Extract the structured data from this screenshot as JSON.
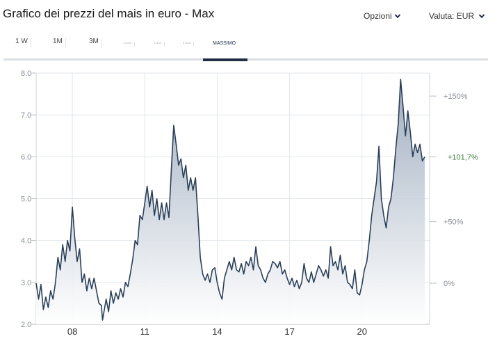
{
  "header": {
    "title": "Grafico dei prezzi del mais in euro - Max",
    "options_label": "Opzioni",
    "currency_label": "Valuta: EUR"
  },
  "tabs": [
    {
      "label": "1 W",
      "size": "normal"
    },
    {
      "label": "1M",
      "size": "normal"
    },
    {
      "label": "3M",
      "size": "normal"
    },
    {
      "label": "1 anno",
      "size": "tiny"
    },
    {
      "label": "3 anni",
      "size": "tiny"
    },
    {
      "label": "5 anni",
      "size": "tiny"
    },
    {
      "label": "MASSIMO",
      "size": "active"
    }
  ],
  "active_tab": "MASSIMO",
  "colors": {
    "line": "#2b3f58",
    "fill_top": "#9aa9bc",
    "fill_bottom": "#ffffff",
    "grid": "#e3e6ea",
    "active_tab": "#1f2d45",
    "pct_green": "#3a7d3a"
  },
  "chart_data": {
    "type": "area",
    "title": "",
    "xlabel": "",
    "ylabel": "",
    "ylim": [
      2.0,
      8.0
    ],
    "xlim": [
      2006.5,
      2022.8
    ],
    "yticks": [
      "8.0",
      "7.0",
      "6.0",
      "5.0",
      "4.0",
      "3.0",
      "2.0"
    ],
    "ytick_values": [
      8.0,
      7.0,
      6.0,
      5.0,
      4.0,
      3.0,
      2.0
    ],
    "xticks": [
      "08",
      "11",
      "14",
      "17",
      "20"
    ],
    "xtick_values": [
      2008,
      2011,
      2014,
      2017,
      2020
    ],
    "right_axis": [
      {
        "label": "+150%",
        "value": 7.45,
        "highlight": false
      },
      {
        "label": "+101,7%",
        "value": 6.0,
        "highlight": true
      },
      {
        "label": "+50%",
        "value": 4.45,
        "highlight": false
      },
      {
        "label": "0%",
        "value": 2.98,
        "highlight": false
      }
    ],
    "grid": true,
    "series": [
      {
        "points": [
          [
            2006.5,
            2.98
          ],
          [
            2006.6,
            2.6
          ],
          [
            2006.7,
            2.95
          ],
          [
            2006.8,
            2.35
          ],
          [
            2006.9,
            2.65
          ],
          [
            2007.0,
            2.4
          ],
          [
            2007.1,
            2.8
          ],
          [
            2007.2,
            2.6
          ],
          [
            2007.3,
            3.0
          ],
          [
            2007.4,
            3.6
          ],
          [
            2007.5,
            3.3
          ],
          [
            2007.6,
            3.9
          ],
          [
            2007.7,
            3.5
          ],
          [
            2007.8,
            4.0
          ],
          [
            2007.9,
            3.75
          ],
          [
            2008.0,
            4.8
          ],
          [
            2008.1,
            4.05
          ],
          [
            2008.2,
            3.5
          ],
          [
            2008.3,
            3.8
          ],
          [
            2008.4,
            3.0
          ],
          [
            2008.5,
            3.2
          ],
          [
            2008.6,
            2.8
          ],
          [
            2008.7,
            3.1
          ],
          [
            2008.8,
            2.85
          ],
          [
            2008.9,
            3.1
          ],
          [
            2009.0,
            2.8
          ],
          [
            2009.1,
            2.5
          ],
          [
            2009.2,
            2.45
          ],
          [
            2009.25,
            2.1
          ],
          [
            2009.4,
            2.6
          ],
          [
            2009.5,
            2.3
          ],
          [
            2009.6,
            2.8
          ],
          [
            2009.7,
            2.5
          ],
          [
            2009.8,
            2.75
          ],
          [
            2009.9,
            2.6
          ],
          [
            2010.0,
            2.85
          ],
          [
            2010.1,
            2.65
          ],
          [
            2010.2,
            3.0
          ],
          [
            2010.3,
            2.9
          ],
          [
            2010.4,
            3.2
          ],
          [
            2010.5,
            3.55
          ],
          [
            2010.6,
            4.0
          ],
          [
            2010.7,
            3.9
          ],
          [
            2010.8,
            4.6
          ],
          [
            2010.9,
            4.5
          ],
          [
            2011.0,
            4.9
          ],
          [
            2011.1,
            5.3
          ],
          [
            2011.2,
            4.8
          ],
          [
            2011.3,
            5.2
          ],
          [
            2011.4,
            4.6
          ],
          [
            2011.5,
            5.0
          ],
          [
            2011.6,
            4.5
          ],
          [
            2011.7,
            4.9
          ],
          [
            2011.8,
            4.5
          ],
          [
            2011.9,
            4.9
          ],
          [
            2012.0,
            4.55
          ],
          [
            2012.1,
            5.7
          ],
          [
            2012.2,
            6.75
          ],
          [
            2012.3,
            6.3
          ],
          [
            2012.4,
            5.8
          ],
          [
            2012.5,
            5.95
          ],
          [
            2012.6,
            5.5
          ],
          [
            2012.7,
            5.8
          ],
          [
            2012.8,
            5.2
          ],
          [
            2012.9,
            5.5
          ],
          [
            2013.0,
            5.2
          ],
          [
            2013.1,
            5.5
          ],
          [
            2013.2,
            4.6
          ],
          [
            2013.3,
            3.6
          ],
          [
            2013.4,
            3.2
          ],
          [
            2013.5,
            3.05
          ],
          [
            2013.6,
            3.2
          ],
          [
            2013.7,
            3.0
          ],
          [
            2013.8,
            3.3
          ],
          [
            2013.9,
            3.35
          ],
          [
            2014.0,
            3.0
          ],
          [
            2014.1,
            2.75
          ],
          [
            2014.2,
            2.6
          ],
          [
            2014.3,
            3.1
          ],
          [
            2014.4,
            3.3
          ],
          [
            2014.5,
            3.5
          ],
          [
            2014.6,
            3.3
          ],
          [
            2014.7,
            3.6
          ],
          [
            2014.8,
            3.3
          ],
          [
            2014.9,
            3.25
          ],
          [
            2015.0,
            3.45
          ],
          [
            2015.1,
            3.2
          ],
          [
            2015.2,
            3.5
          ],
          [
            2015.3,
            3.4
          ],
          [
            2015.4,
            3.6
          ],
          [
            2015.5,
            3.3
          ],
          [
            2015.6,
            3.85
          ],
          [
            2015.7,
            3.4
          ],
          [
            2015.8,
            3.3
          ],
          [
            2015.9,
            3.1
          ],
          [
            2016.0,
            3.0
          ],
          [
            2016.1,
            3.2
          ],
          [
            2016.2,
            3.3
          ],
          [
            2016.3,
            3.5
          ],
          [
            2016.4,
            3.45
          ],
          [
            2016.5,
            3.35
          ],
          [
            2016.6,
            3.5
          ],
          [
            2016.7,
            3.2
          ],
          [
            2016.8,
            3.3
          ],
          [
            2016.9,
            3.1
          ],
          [
            2017.0,
            2.95
          ],
          [
            2017.1,
            3.1
          ],
          [
            2017.2,
            2.9
          ],
          [
            2017.3,
            3.05
          ],
          [
            2017.4,
            2.85
          ],
          [
            2017.5,
            3.0
          ],
          [
            2017.6,
            3.45
          ],
          [
            2017.7,
            3.1
          ],
          [
            2017.8,
            3.0
          ],
          [
            2017.9,
            3.25
          ],
          [
            2018.0,
            3.0
          ],
          [
            2018.1,
            3.2
          ],
          [
            2018.2,
            3.4
          ],
          [
            2018.3,
            3.3
          ],
          [
            2018.4,
            3.15
          ],
          [
            2018.5,
            3.3
          ],
          [
            2018.6,
            3.1
          ],
          [
            2018.7,
            3.85
          ],
          [
            2018.8,
            3.4
          ],
          [
            2018.9,
            3.5
          ],
          [
            2019.0,
            3.3
          ],
          [
            2019.1,
            3.65
          ],
          [
            2019.2,
            3.2
          ],
          [
            2019.3,
            3.4
          ],
          [
            2019.4,
            3.0
          ],
          [
            2019.5,
            2.95
          ],
          [
            2019.6,
            2.85
          ],
          [
            2019.7,
            3.3
          ],
          [
            2019.8,
            2.75
          ],
          [
            2019.9,
            2.7
          ],
          [
            2020.0,
            2.95
          ],
          [
            2020.1,
            3.3
          ],
          [
            2020.2,
            3.5
          ],
          [
            2020.3,
            4.0
          ],
          [
            2020.4,
            4.6
          ],
          [
            2020.5,
            5.0
          ],
          [
            2020.6,
            5.4
          ],
          [
            2020.7,
            6.25
          ],
          [
            2020.8,
            5.0
          ],
          [
            2020.9,
            4.6
          ],
          [
            2021.0,
            4.3
          ],
          [
            2021.1,
            4.8
          ],
          [
            2021.2,
            5.0
          ],
          [
            2021.3,
            5.5
          ],
          [
            2021.4,
            6.2
          ],
          [
            2021.5,
            6.8
          ],
          [
            2021.6,
            7.85
          ],
          [
            2021.7,
            7.2
          ],
          [
            2021.8,
            6.5
          ],
          [
            2021.9,
            7.1
          ],
          [
            2022.0,
            6.6
          ],
          [
            2022.1,
            6.0
          ],
          [
            2022.2,
            6.3
          ],
          [
            2022.3,
            6.1
          ],
          [
            2022.4,
            6.3
          ],
          [
            2022.5,
            5.9
          ],
          [
            2022.6,
            6.0
          ]
        ]
      }
    ]
  }
}
